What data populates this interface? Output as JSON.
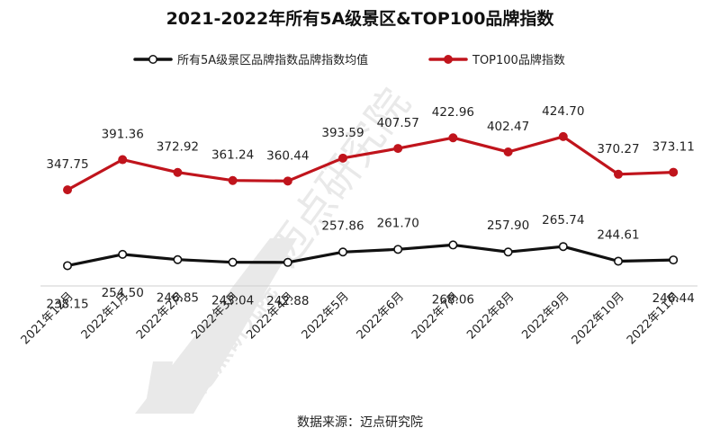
{
  "chart_data": {
    "type": "line",
    "title": "2021-2022年所有5A级景区&TOP100品牌指数",
    "source": "数据来源：迈点研究院",
    "watermark": "迈点研究院",
    "categories": [
      "2021年12月",
      "2022年1月",
      "2022年2月",
      "2022年3月",
      "2022年4月",
      "2022年5月",
      "2022年6月",
      "2022年7月",
      "2022年8月",
      "2022年9月",
      "2022年10月",
      "2022年11月"
    ],
    "series": [
      {
        "name": "所有5A级景区品牌指数品牌指数均值",
        "color": "#111111",
        "values": [
          238.15,
          254.5,
          246.85,
          243.04,
          242.88,
          257.86,
          261.7,
          268.06,
          257.9,
          265.74,
          244.61,
          246.44
        ],
        "labels": [
          "238.15",
          "254.50",
          "246.85",
          "243.04",
          "242.88",
          "257.86",
          "261.70",
          "268.06",
          "257.90",
          "265.74",
          "244.61",
          "246.44"
        ]
      },
      {
        "name": "TOP100品牌指数",
        "color": "#c0141c",
        "values": [
          347.75,
          391.36,
          372.92,
          361.24,
          360.44,
          393.59,
          407.57,
          422.96,
          402.47,
          424.7,
          370.27,
          373.11
        ],
        "labels": [
          "347.75",
          "391.36",
          "372.92",
          "361.24",
          "360.44",
          "393.59",
          "407.57",
          "422.96",
          "402.47",
          "424.70",
          "370.27",
          "373.11"
        ]
      }
    ],
    "legend_position": "top",
    "grid": false
  }
}
